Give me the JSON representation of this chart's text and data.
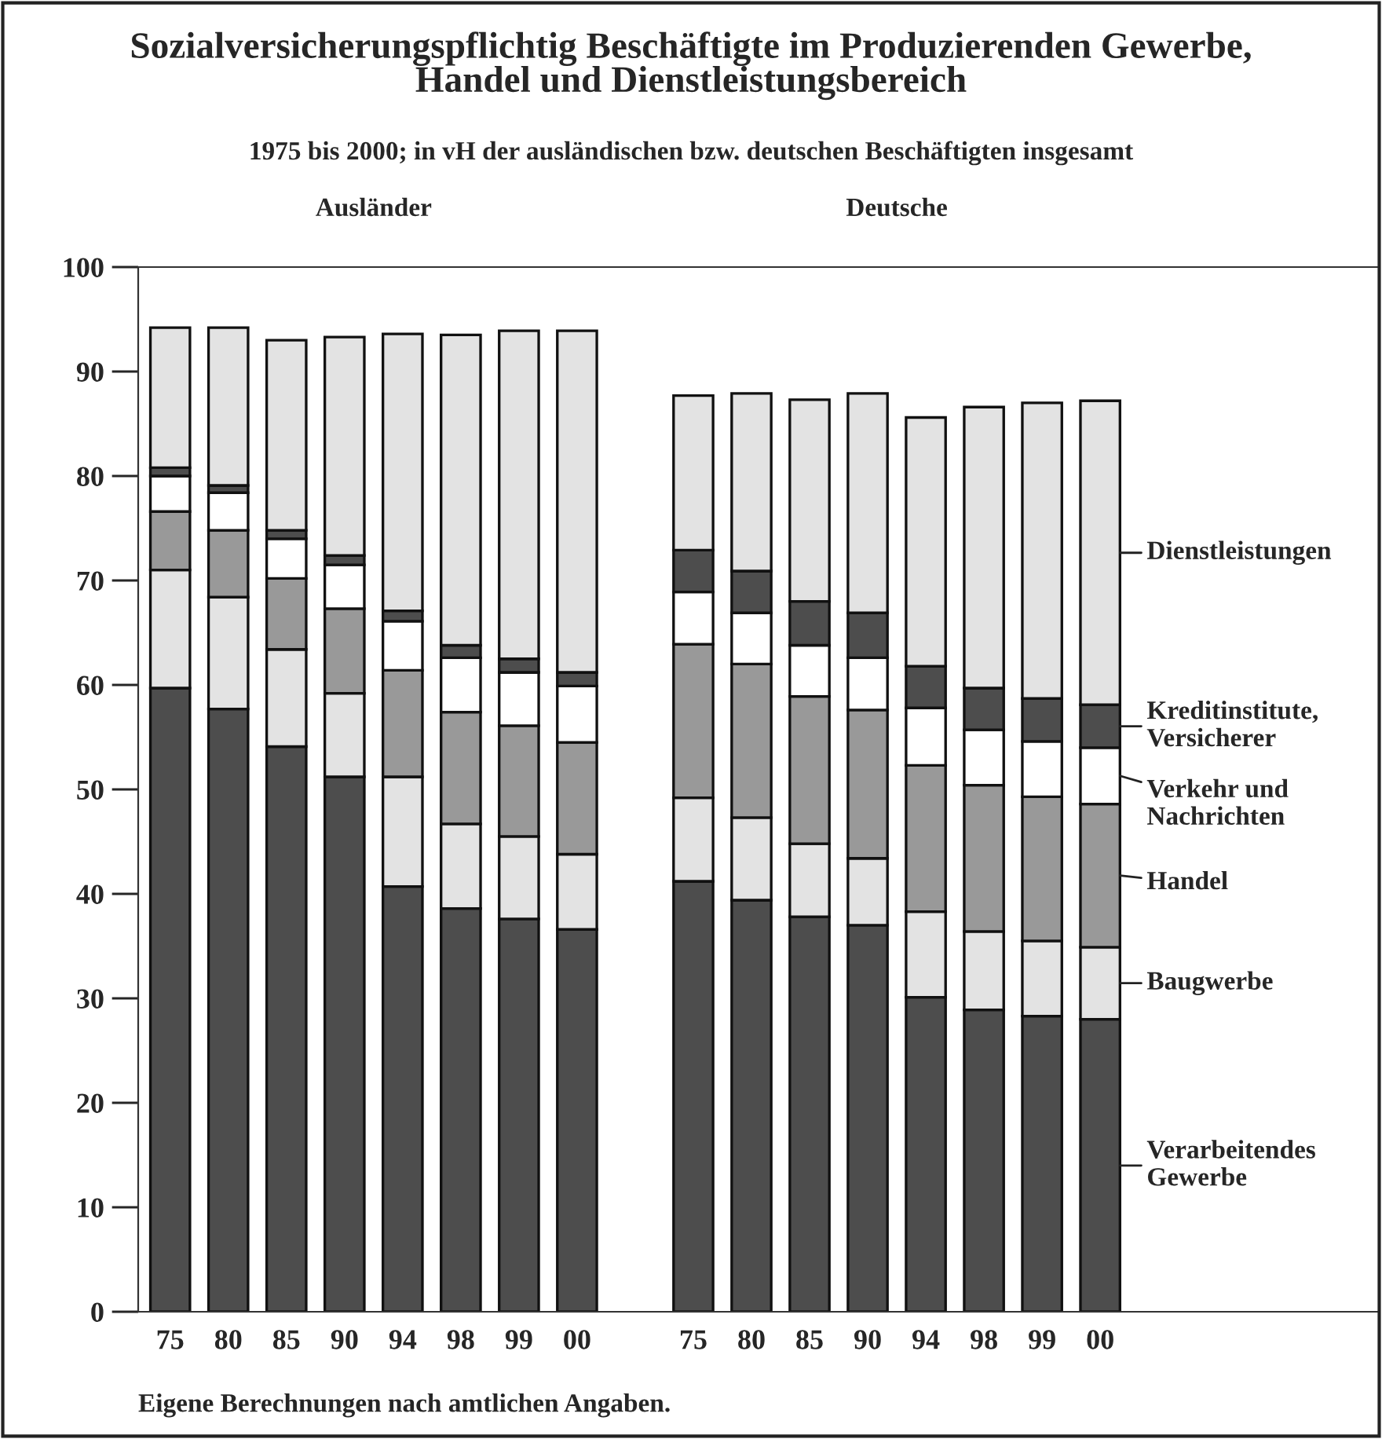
{
  "chart_data": {
    "type": "bar",
    "stacked": true,
    "title": "Sozialversicherungspflichtig Beschäftigte im Produzierenden Gewerbe,\nHandel und Dienstleistungsbereich",
    "subtitle": "1975 bis 2000; in vH der ausländischen bzw. deutschen Beschäftigten insgesamt",
    "annotations": [
      "Ausländer",
      "Deutsche",
      "Eigene Berechnungen nach amtlichen Angaben."
    ],
    "categories": [
      "75",
      "80",
      "85",
      "90",
      "94",
      "98",
      "99",
      "00",
      null,
      "75",
      "80",
      "85",
      "90",
      "94",
      "98",
      "99",
      "00"
    ],
    "ylim": [
      0,
      100
    ],
    "yticks": [
      0,
      10,
      20,
      30,
      40,
      50,
      60,
      70,
      80,
      90,
      100
    ],
    "grid": false,
    "legend": false,
    "series": [
      {
        "name": "Verarbeitendes\nGewerbe",
        "color": "#4d4d4d",
        "values": [
          59.7,
          57.7,
          54.1,
          51.2,
          40.7,
          38.6,
          37.6,
          36.6,
          null,
          41.2,
          39.4,
          37.8,
          37.0,
          30.1,
          28.9,
          28.3,
          28.0
        ]
      },
      {
        "name": "Baugwerbe",
        "color": "#e3e3e3",
        "values": [
          11.3,
          10.7,
          9.3,
          8.0,
          10.5,
          8.1,
          7.9,
          7.2,
          null,
          8.0,
          7.9,
          7.0,
          6.4,
          8.2,
          7.5,
          7.2,
          6.9
        ]
      },
      {
        "name": "Handel",
        "color": "#999999",
        "values": [
          5.6,
          6.4,
          6.8,
          8.1,
          10.2,
          10.7,
          10.6,
          10.7,
          null,
          14.7,
          14.7,
          14.1,
          14.2,
          14.0,
          14.0,
          13.8,
          13.7
        ]
      },
      {
        "name": "Verkehr und\nNachrichten",
        "color": "#ffffff",
        "values": [
          3.4,
          3.6,
          3.8,
          4.2,
          4.7,
          5.2,
          5.1,
          5.4,
          null,
          5.0,
          4.9,
          4.9,
          5.0,
          5.5,
          5.3,
          5.3,
          5.4
        ]
      },
      {
        "name": "Kreditinstitute,\nVersicherer",
        "color": "#4d4d4d",
        "values": [
          0.8,
          0.7,
          0.8,
          0.9,
          1.0,
          1.2,
          1.3,
          1.3,
          null,
          4.0,
          4.0,
          4.2,
          4.3,
          4.0,
          4.0,
          4.1,
          4.1
        ]
      },
      {
        "name": "Dienstleistungen",
        "color": "#e3e3e3",
        "values": [
          13.4,
          15.1,
          18.2,
          20.9,
          26.5,
          29.7,
          31.4,
          32.7,
          null,
          14.8,
          17.0,
          19.3,
          21.0,
          23.8,
          26.9,
          28.3,
          29.1
        ]
      }
    ]
  }
}
